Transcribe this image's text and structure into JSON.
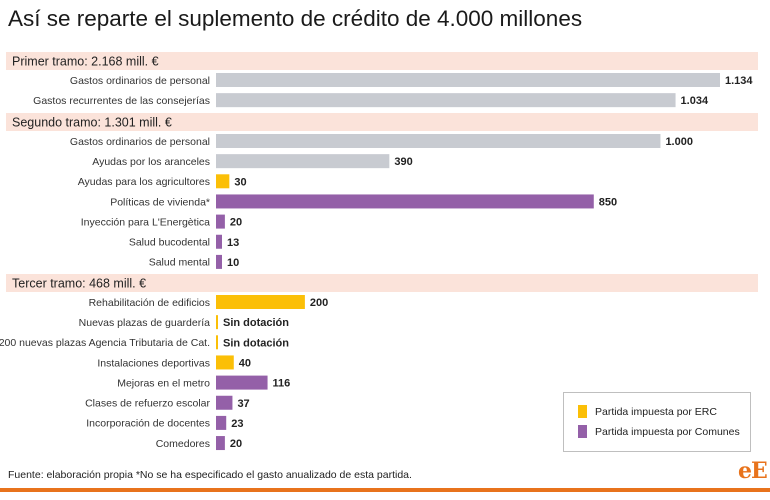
{
  "title": "Así se reparte el suplemento de crédito de 4.000 millones",
  "source": "Fuente: elaboración propia *No se ha especificado el gasto anualizado de esta partida.",
  "logo": "eE",
  "colors": {
    "gris": "#c8cbd1",
    "erc": "#fbbf07",
    "comunes": "#9460a8",
    "section_bg": "#fbe3da",
    "brand": "#e8731c"
  },
  "legend": [
    {
      "label": "Partida impuesta por ERC",
      "color": "#fbbf07"
    },
    {
      "label": "Partida impuesta por Comunes",
      "color": "#9460a8"
    }
  ],
  "chart_data": {
    "type": "bar",
    "orientation": "horizontal",
    "xlim": [
      0,
      1134
    ],
    "grid": false,
    "legend_position": "bottom-right",
    "sections": [
      {
        "label": "Primer tramo: 2.168 mill. €",
        "items": [
          {
            "category": "Gastos ordinarios de personal",
            "value": 1134,
            "label": "1.134",
            "group": "gris"
          },
          {
            "category": "Gastos recurrentes de las consejerías",
            "value": 1034,
            "label": "1.034",
            "group": "gris"
          }
        ]
      },
      {
        "label": "Segundo tramo: 1.301 mill. €",
        "items": [
          {
            "category": "Gastos ordinarios de personal",
            "value": 1000,
            "label": "1.000",
            "group": "gris"
          },
          {
            "category": "Ayudas por los aranceles",
            "value": 390,
            "label": "390",
            "group": "gris"
          },
          {
            "category": "Ayudas para los agricultores",
            "value": 30,
            "label": "30",
            "group": "erc"
          },
          {
            "category": "Políticas de vivienda*",
            "value": 850,
            "label": "850",
            "group": "comunes"
          },
          {
            "category": "Inyección para L'Energètica",
            "value": 20,
            "label": "20",
            "group": "comunes"
          },
          {
            "category": "Salud bucodental",
            "value": 13,
            "label": "13",
            "group": "comunes"
          },
          {
            "category": "Salud mental",
            "value": 10,
            "label": "10",
            "group": "comunes"
          }
        ]
      },
      {
        "label": "Tercer tramo: 468 mill. €",
        "items": [
          {
            "category": "Rehabilitación de edificios",
            "value": 200,
            "label": "200",
            "group": "erc"
          },
          {
            "category": "Nuevas plazas de guardería",
            "value": 0,
            "label": "Sin dotación",
            "group": "erc"
          },
          {
            "category": "200 nuevas plazas Agencia Tributaria de Cat.",
            "value": 0,
            "label": "Sin dotación",
            "group": "erc"
          },
          {
            "category": "Instalaciones deportivas",
            "value": 40,
            "label": "40",
            "group": "erc"
          },
          {
            "category": "Mejoras en el metro",
            "value": 116,
            "label": "116",
            "group": "comunes"
          },
          {
            "category": "Clases de refuerzo escolar",
            "value": 37,
            "label": "37",
            "group": "comunes"
          },
          {
            "category": "Incorporación de docentes",
            "value": 23,
            "label": "23",
            "group": "comunes"
          },
          {
            "category": "Comedores",
            "value": 20,
            "label": "20",
            "group": "comunes"
          }
        ]
      }
    ]
  }
}
